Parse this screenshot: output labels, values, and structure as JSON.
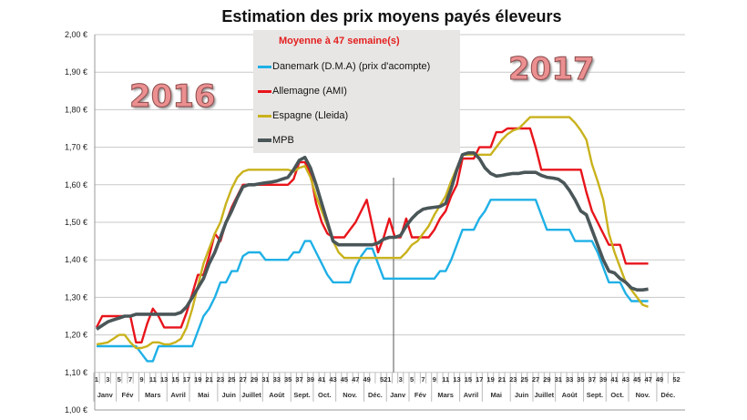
{
  "chart_data": {
    "type": "line",
    "title": "Estimation des prix moyens payés éleveurs",
    "legend_title": "Moyenne à  47 semaine(s)",
    "legend_placement": "top-center",
    "year_labels": [
      "2016",
      "2017"
    ],
    "ylim": [
      1.0,
      2.0
    ],
    "y_ticks": [
      "1,00 €",
      "1,10 €",
      "1,20 €",
      "1,30 €",
      "1,40 €",
      "1,50 €",
      "1,60 €",
      "1,70 €",
      "1,80 €",
      "1,90 €",
      "2,00 €"
    ],
    "grid": "horizontal",
    "x_unit": "week",
    "weeks_per_year": 52,
    "months": [
      "Janv",
      "Fév",
      "Mars",
      "Avril",
      "Mai",
      "Juin",
      "Juillet",
      "Août",
      "Sept.",
      "Oct.",
      "Nov.",
      "Déc."
    ],
    "series": [
      {
        "name": "Danemark (D.M.A) (prix d'acompte)",
        "color": "#1fb0e6",
        "values_2016": [
          1.17,
          1.17,
          1.17,
          1.17,
          1.17,
          1.17,
          1.17,
          1.17,
          1.15,
          1.13,
          1.13,
          1.17,
          1.17,
          1.17,
          1.17,
          1.17,
          1.17,
          1.17,
          1.21,
          1.25,
          1.27,
          1.3,
          1.34,
          1.34,
          1.37,
          1.37,
          1.41,
          1.42,
          1.42,
          1.42,
          1.4,
          1.4,
          1.4,
          1.4,
          1.4,
          1.42,
          1.42,
          1.45,
          1.45,
          1.42,
          1.39,
          1.36,
          1.34,
          1.34,
          1.34,
          1.34,
          1.38,
          1.41,
          1.43,
          1.43,
          1.39,
          1.35
        ],
        "values_2017": [
          1.35,
          1.35,
          1.35,
          1.35,
          1.35,
          1.35,
          1.35,
          1.35,
          1.35,
          1.37,
          1.37,
          1.4,
          1.44,
          1.48,
          1.48,
          1.48,
          1.51,
          1.53,
          1.56,
          1.56,
          1.56,
          1.56,
          1.56,
          1.56,
          1.56,
          1.56,
          1.56,
          1.52,
          1.48,
          1.48,
          1.48,
          1.48,
          1.48,
          1.45,
          1.45,
          1.45,
          1.45,
          1.42,
          1.38,
          1.34,
          1.34,
          1.34,
          1.31,
          1.29,
          1.29,
          1.29,
          1.29
        ]
      },
      {
        "name": "Allemagne (AMI)",
        "color": "#e8141b",
        "values_2016": [
          1.22,
          1.25,
          1.25,
          1.25,
          1.25,
          1.25,
          1.25,
          1.18,
          1.18,
          1.23,
          1.27,
          1.25,
          1.22,
          1.22,
          1.22,
          1.22,
          1.26,
          1.31,
          1.36,
          1.36,
          1.41,
          1.47,
          1.45,
          1.5,
          1.54,
          1.57,
          1.6,
          1.6,
          1.6,
          1.6,
          1.6,
          1.6,
          1.6,
          1.6,
          1.6,
          1.615,
          1.66,
          1.66,
          1.63,
          1.55,
          1.5,
          1.47,
          1.46,
          1.46,
          1.46,
          1.48,
          1.5,
          1.53,
          1.56,
          1.49,
          1.42,
          1.46
        ],
        "values_2017": [
          1.51,
          1.46,
          1.46,
          1.51,
          1.46,
          1.46,
          1.46,
          1.46,
          1.48,
          1.51,
          1.53,
          1.57,
          1.6,
          1.67,
          1.67,
          1.67,
          1.7,
          1.7,
          1.7,
          1.74,
          1.74,
          1.75,
          1.75,
          1.75,
          1.75,
          1.75,
          1.7,
          1.64,
          1.64,
          1.64,
          1.64,
          1.64,
          1.64,
          1.64,
          1.64,
          1.58,
          1.53,
          1.5,
          1.47,
          1.44,
          1.44,
          1.44,
          1.39,
          1.39,
          1.39,
          1.39,
          1.39
        ]
      },
      {
        "name": "Espagne (Lleida)",
        "color": "#c9b21c",
        "values_2016": [
          1.175,
          1.177,
          1.18,
          1.19,
          1.2,
          1.2,
          1.18,
          1.165,
          1.165,
          1.17,
          1.18,
          1.18,
          1.175,
          1.175,
          1.18,
          1.19,
          1.22,
          1.27,
          1.33,
          1.39,
          1.43,
          1.47,
          1.5,
          1.55,
          1.59,
          1.62,
          1.635,
          1.64,
          1.64,
          1.64,
          1.64,
          1.64,
          1.64,
          1.64,
          1.64,
          1.635,
          1.645,
          1.65,
          1.62,
          1.57,
          1.53,
          1.49,
          1.45,
          1.42,
          1.405,
          1.405,
          1.405,
          1.405,
          1.405,
          1.405,
          1.405,
          1.405
        ],
        "values_2017": [
          1.405,
          1.405,
          1.405,
          1.42,
          1.44,
          1.45,
          1.47,
          1.49,
          1.52,
          1.545,
          1.57,
          1.61,
          1.645,
          1.68,
          1.68,
          1.68,
          1.68,
          1.68,
          1.68,
          1.7,
          1.72,
          1.735,
          1.745,
          1.75,
          1.765,
          1.78,
          1.78,
          1.78,
          1.78,
          1.78,
          1.78,
          1.78,
          1.78,
          1.765,
          1.745,
          1.72,
          1.655,
          1.61,
          1.56,
          1.47,
          1.42,
          1.38,
          1.34,
          1.32,
          1.3,
          1.28,
          1.275
        ]
      },
      {
        "name": "MPB",
        "color": "#4a5658",
        "values_2016": [
          1.215,
          1.225,
          1.235,
          1.24,
          1.245,
          1.25,
          1.25,
          1.255,
          1.255,
          1.255,
          1.255,
          1.255,
          1.255,
          1.255,
          1.255,
          1.26,
          1.275,
          1.3,
          1.325,
          1.35,
          1.39,
          1.42,
          1.46,
          1.5,
          1.53,
          1.565,
          1.595,
          1.6,
          1.6,
          1.603,
          1.605,
          1.607,
          1.61,
          1.615,
          1.62,
          1.64,
          1.665,
          1.673,
          1.645,
          1.6,
          1.55,
          1.5,
          1.45,
          1.44,
          1.44,
          1.44,
          1.44,
          1.44,
          1.44,
          1.44,
          1.445,
          1.455
        ],
        "values_2017": [
          1.46,
          1.46,
          1.465,
          1.49,
          1.51,
          1.525,
          1.535,
          1.538,
          1.54,
          1.542,
          1.55,
          1.59,
          1.64,
          1.68,
          1.685,
          1.685,
          1.67,
          1.645,
          1.63,
          1.623,
          1.625,
          1.628,
          1.63,
          1.63,
          1.633,
          1.633,
          1.633,
          1.625,
          1.62,
          1.618,
          1.615,
          1.605,
          1.585,
          1.56,
          1.53,
          1.52,
          1.48,
          1.44,
          1.4,
          1.37,
          1.365,
          1.35,
          1.34,
          1.325,
          1.32,
          1.32,
          1.322
        ]
      }
    ]
  }
}
